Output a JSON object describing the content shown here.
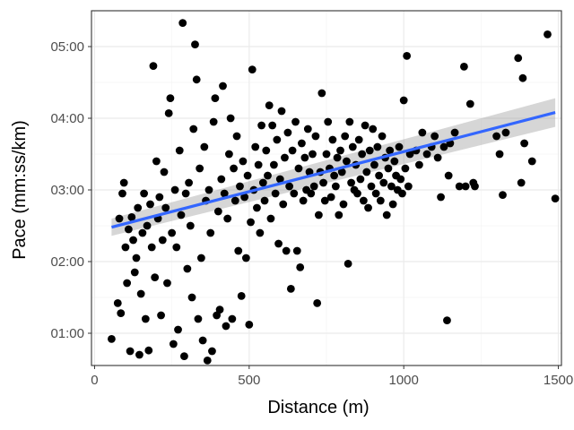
{
  "chart_data": {
    "type": "scatter",
    "xlabel": "Distance (m)",
    "ylabel": "Pace (mm:ss/km)",
    "xlim": [
      -10,
      1510
    ],
    "ylim": [
      0.55,
      5.5
    ],
    "x_ticks": [
      {
        "value": 0,
        "label": "0"
      },
      {
        "value": 500,
        "label": "500"
      },
      {
        "value": 1000,
        "label": "1000"
      },
      {
        "value": 1500,
        "label": "1500"
      }
    ],
    "y_ticks": [
      {
        "value": 1,
        "label": "01:00"
      },
      {
        "value": 2,
        "label": "02:00"
      },
      {
        "value": 3,
        "label": "03:00"
      },
      {
        "value": 4,
        "label": "04:00"
      },
      {
        "value": 5,
        "label": "05:00"
      }
    ],
    "grid": true,
    "colors": {
      "points": "#000000",
      "trend": "#3366ff",
      "ribbon": "#999999",
      "grid_major": "#ebebeb",
      "grid_minor": "#f5f5f5",
      "border": "#333333"
    },
    "trend": {
      "method": "linear",
      "x": [
        55,
        1490
      ],
      "y": [
        2.48,
        4.08
      ],
      "ribbon_lower": [
        2.36,
        3.88
      ],
      "ribbon_upper": [
        2.6,
        4.28
      ]
    },
    "points": [
      [
        55,
        0.92
      ],
      [
        75,
        1.42
      ],
      [
        80,
        2.6
      ],
      [
        85,
        1.28
      ],
      [
        90,
        2.95
      ],
      [
        95,
        3.1
      ],
      [
        100,
        2.2
      ],
      [
        105,
        1.7
      ],
      [
        110,
        2.45
      ],
      [
        115,
        0.75
      ],
      [
        120,
        2.62
      ],
      [
        125,
        2.3
      ],
      [
        130,
        1.85
      ],
      [
        135,
        2.05
      ],
      [
        140,
        2.75
      ],
      [
        145,
        0.7
      ],
      [
        150,
        1.55
      ],
      [
        155,
        2.4
      ],
      [
        160,
        2.95
      ],
      [
        165,
        1.2
      ],
      [
        170,
        2.5
      ],
      [
        175,
        0.76
      ],
      [
        180,
        2.8
      ],
      [
        185,
        2.2
      ],
      [
        190,
        4.73
      ],
      [
        195,
        1.78
      ],
      [
        200,
        3.4
      ],
      [
        205,
        2.6
      ],
      [
        210,
        2.9
      ],
      [
        215,
        1.25
      ],
      [
        220,
        2.3
      ],
      [
        225,
        3.25
      ],
      [
        230,
        2.75
      ],
      [
        235,
        1.7
      ],
      [
        240,
        4.07
      ],
      [
        245,
        4.28
      ],
      [
        250,
        2.4
      ],
      [
        255,
        0.85
      ],
      [
        260,
        3.0
      ],
      [
        265,
        2.2
      ],
      [
        270,
        1.05
      ],
      [
        275,
        3.55
      ],
      [
        280,
        2.65
      ],
      [
        285,
        5.33
      ],
      [
        290,
        0.68
      ],
      [
        295,
        2.95
      ],
      [
        300,
        1.9
      ],
      [
        305,
        3.1
      ],
      [
        310,
        2.5
      ],
      [
        315,
        1.5
      ],
      [
        320,
        3.85
      ],
      [
        325,
        5.03
      ],
      [
        330,
        4.54
      ],
      [
        335,
        1.2
      ],
      [
        340,
        3.3
      ],
      [
        345,
        2.05
      ],
      [
        350,
        0.9
      ],
      [
        355,
        3.6
      ],
      [
        360,
        2.85
      ],
      [
        365,
        0.62
      ],
      [
        370,
        3.0
      ],
      [
        375,
        2.4
      ],
      [
        380,
        0.75
      ],
      [
        385,
        3.95
      ],
      [
        390,
        4.28
      ],
      [
        395,
        1.25
      ],
      [
        400,
        2.7
      ],
      [
        405,
        1.33
      ],
      [
        410,
        3.15
      ],
      [
        415,
        4.45
      ],
      [
        420,
        2.95
      ],
      [
        425,
        1.1
      ],
      [
        430,
        2.6
      ],
      [
        435,
        3.5
      ],
      [
        440,
        4.0
      ],
      [
        445,
        1.2
      ],
      [
        450,
        3.3
      ],
      [
        455,
        2.85
      ],
      [
        460,
        3.75
      ],
      [
        465,
        2.15
      ],
      [
        470,
        3.05
      ],
      [
        475,
        1.52
      ],
      [
        480,
        3.4
      ],
      [
        485,
        2.9
      ],
      [
        490,
        2.05
      ],
      [
        495,
        3.2
      ],
      [
        500,
        1.12
      ],
      [
        505,
        2.55
      ],
      [
        510,
        4.68
      ],
      [
        515,
        3.0
      ],
      [
        520,
        3.6
      ],
      [
        525,
        2.75
      ],
      [
        530,
        3.35
      ],
      [
        535,
        2.4
      ],
      [
        540,
        3.9
      ],
      [
        545,
        3.1
      ],
      [
        550,
        2.85
      ],
      [
        555,
        3.55
      ],
      [
        560,
        3.2
      ],
      [
        565,
        4.18
      ],
      [
        570,
        2.6
      ],
      [
        575,
        3.9
      ],
      [
        580,
        3.35
      ],
      [
        585,
        2.95
      ],
      [
        590,
        3.7
      ],
      [
        595,
        2.25
      ],
      [
        600,
        3.15
      ],
      [
        605,
        4.1
      ],
      [
        610,
        2.8
      ],
      [
        615,
        3.45
      ],
      [
        620,
        2.15
      ],
      [
        625,
        3.8
      ],
      [
        630,
        3.05
      ],
      [
        635,
        1.62
      ],
      [
        640,
        3.55
      ],
      [
        645,
        2.95
      ],
      [
        650,
        3.95
      ],
      [
        655,
        2.15
      ],
      [
        660,
        3.3
      ],
      [
        665,
        1.92
      ],
      [
        670,
        3.65
      ],
      [
        675,
        2.85
      ],
      [
        680,
        3.45
      ],
      [
        685,
        3.0
      ],
      [
        690,
        3.85
      ],
      [
        695,
        3.25
      ],
      [
        700,
        2.95
      ],
      [
        705,
        3.5
      ],
      [
        710,
        3.05
      ],
      [
        715,
        3.75
      ],
      [
        720,
        1.42
      ],
      [
        725,
        2.65
      ],
      [
        730,
        3.25
      ],
      [
        735,
        4.35
      ],
      [
        740,
        3.1
      ],
      [
        745,
        2.85
      ],
      [
        750,
        3.5
      ],
      [
        755,
        3.95
      ],
      [
        760,
        3.3
      ],
      [
        765,
        2.9
      ],
      [
        770,
        3.7
      ],
      [
        775,
        3.2
      ],
      [
        780,
        3.05
      ],
      [
        785,
        3.45
      ],
      [
        790,
        2.65
      ],
      [
        795,
        3.55
      ],
      [
        800,
        3.25
      ],
      [
        805,
        2.8
      ],
      [
        810,
        3.75
      ],
      [
        815,
        3.4
      ],
      [
        820,
        1.97
      ],
      [
        825,
        3.95
      ],
      [
        830,
        3.1
      ],
      [
        835,
        3.6
      ],
      [
        840,
        3.0
      ],
      [
        845,
        3.35
      ],
      [
        850,
        2.95
      ],
      [
        855,
        3.7
      ],
      [
        860,
        3.15
      ],
      [
        865,
        3.5
      ],
      [
        870,
        2.85
      ],
      [
        875,
        3.9
      ],
      [
        880,
        3.25
      ],
      [
        885,
        2.75
      ],
      [
        890,
        3.55
      ],
      [
        895,
        3.05
      ],
      [
        900,
        3.85
      ],
      [
        905,
        3.35
      ],
      [
        910,
        2.95
      ],
      [
        915,
        3.6
      ],
      [
        920,
        3.2
      ],
      [
        925,
        2.85
      ],
      [
        930,
        3.75
      ],
      [
        935,
        3.1
      ],
      [
        940,
        3.45
      ],
      [
        945,
        2.65
      ],
      [
        950,
        3.3
      ],
      [
        955,
        3.55
      ],
      [
        960,
        3.05
      ],
      [
        965,
        2.8
      ],
      [
        970,
        3.4
      ],
      [
        975,
        3.2
      ],
      [
        980,
        3.0
      ],
      [
        985,
        3.6
      ],
      [
        990,
        3.15
      ],
      [
        995,
        2.95
      ],
      [
        1000,
        4.25
      ],
      [
        1005,
        3.3
      ],
      [
        1010,
        4.87
      ],
      [
        1015,
        3.05
      ],
      [
        1020,
        3.5
      ],
      [
        1040,
        3.55
      ],
      [
        1050,
        3.35
      ],
      [
        1060,
        3.8
      ],
      [
        1075,
        3.5
      ],
      [
        1090,
        3.6
      ],
      [
        1100,
        3.75
      ],
      [
        1110,
        3.45
      ],
      [
        1120,
        2.9
      ],
      [
        1130,
        3.6
      ],
      [
        1140,
        1.18
      ],
      [
        1145,
        3.2
      ],
      [
        1150,
        3.65
      ],
      [
        1165,
        3.8
      ],
      [
        1180,
        3.05
      ],
      [
        1195,
        4.72
      ],
      [
        1200,
        3.05
      ],
      [
        1215,
        4.2
      ],
      [
        1225,
        3.1
      ],
      [
        1230,
        3.05
      ],
      [
        1300,
        3.75
      ],
      [
        1310,
        3.5
      ],
      [
        1320,
        2.93
      ],
      [
        1330,
        3.8
      ],
      [
        1370,
        4.84
      ],
      [
        1380,
        3.1
      ],
      [
        1385,
        4.56
      ],
      [
        1390,
        3.65
      ],
      [
        1415,
        3.4
      ],
      [
        1465,
        5.17
      ],
      [
        1490,
        2.88
      ]
    ]
  }
}
